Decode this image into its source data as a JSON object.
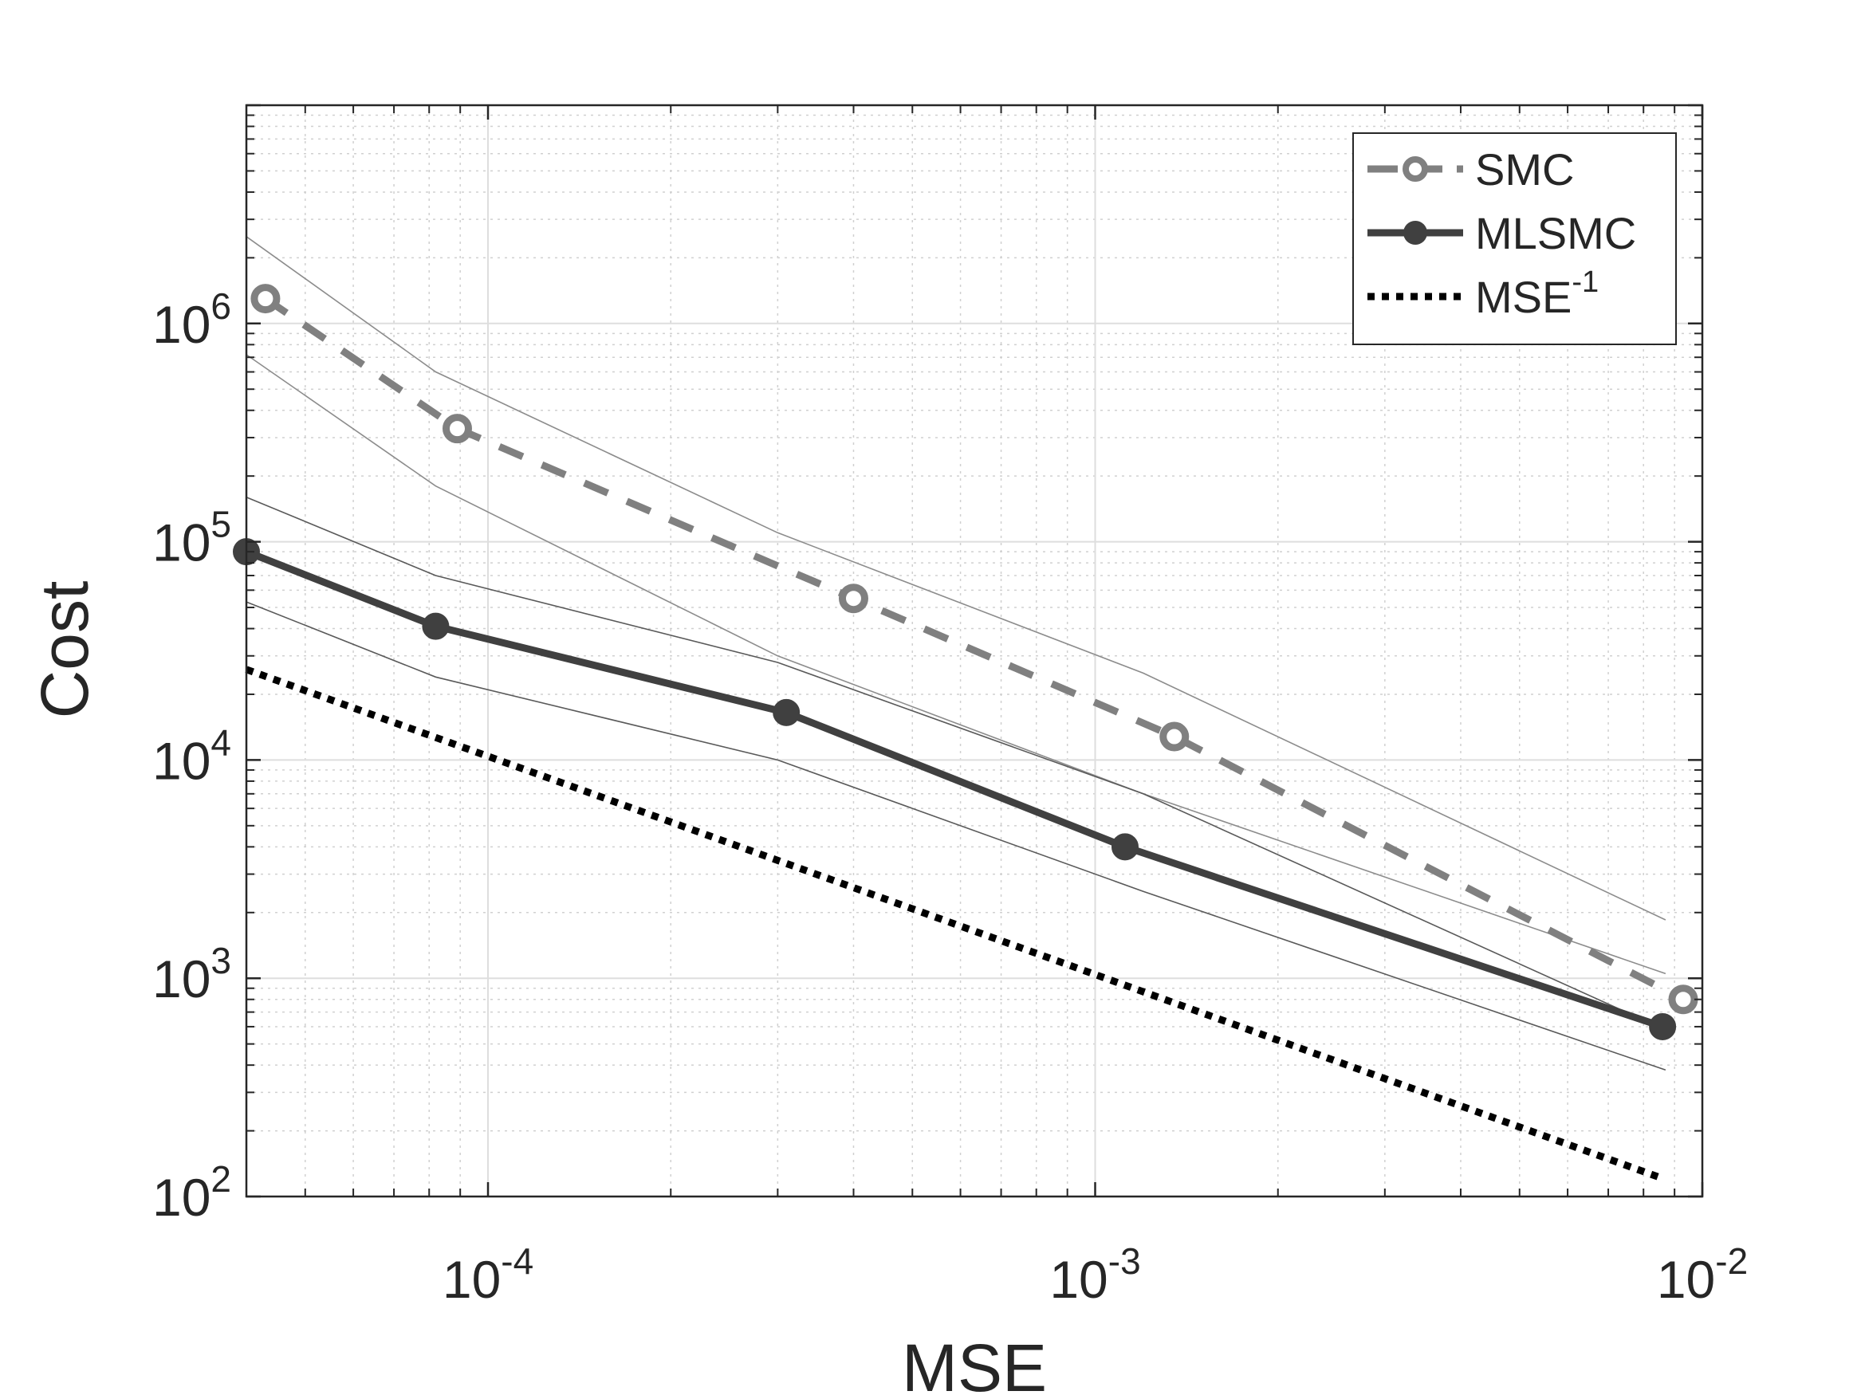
{
  "chart_data": {
    "type": "line",
    "title": "",
    "xlabel": "MSE",
    "ylabel": "Cost",
    "xscale": "log",
    "yscale": "log",
    "xlim": [
      4e-05,
      0.01
    ],
    "ylim": [
      100,
      10000000
    ],
    "grid": true,
    "minor_grid": true,
    "legend_position": "top-right",
    "x_ticks": [
      {
        "value": 0.0001,
        "base": "10",
        "exp": "-4"
      },
      {
        "value": 0.001,
        "base": "10",
        "exp": "-3"
      },
      {
        "value": 0.01,
        "base": "10",
        "exp": "-2"
      }
    ],
    "y_ticks": [
      {
        "value": 100,
        "base": "10",
        "exp": "2"
      },
      {
        "value": 1000,
        "base": "10",
        "exp": "3"
      },
      {
        "value": 10000,
        "base": "10",
        "exp": "4"
      },
      {
        "value": 100000,
        "base": "10",
        "exp": "5"
      },
      {
        "value": 1000000,
        "base": "10",
        "exp": "6"
      }
    ],
    "series": [
      {
        "name": "SMC",
        "style": "dashed",
        "marker": "open-circle",
        "color": "#808080",
        "x": [
          4.3e-05,
          8.9e-05,
          0.0004,
          0.00135,
          0.0093
        ],
        "y": [
          1300000,
          330000,
          55000,
          12800,
          800
        ]
      },
      {
        "name": "MLSMC",
        "style": "solid",
        "marker": "filled-circle",
        "color": "#404040",
        "x": [
          4e-05,
          8.2e-05,
          0.00031,
          0.00112,
          0.0086
        ],
        "y": [
          90000,
          41000,
          16500,
          4000,
          600
        ]
      },
      {
        "name": "MSE",
        "name_sup": "-1",
        "style": "dotted",
        "marker": "none",
        "color": "#000000",
        "x": [
          4e-05,
          0.0086
        ],
        "y": [
          26000,
          121
        ]
      }
    ],
    "bands": [
      {
        "of": "SMC",
        "color": "#8c8c8c",
        "x": [
          4e-05,
          8.2e-05,
          0.0003,
          0.0012,
          0.0087
        ],
        "y": [
          2500000,
          600000,
          110000,
          25000,
          1850
        ]
      },
      {
        "of": "SMC",
        "color": "#8c8c8c",
        "x": [
          4e-05,
          8.2e-05,
          0.0003,
          0.0012,
          0.0087
        ],
        "y": [
          720000,
          180000,
          30000,
          7000,
          1050
        ]
      },
      {
        "of": "MLSMC",
        "color": "#595959",
        "x": [
          4e-05,
          8.2e-05,
          0.0003,
          0.0012,
          0.0087
        ],
        "y": [
          160000,
          70000,
          28000,
          7000,
          580
        ]
      },
      {
        "of": "MLSMC",
        "color": "#595959",
        "x": [
          4e-05,
          8.2e-05,
          0.0003,
          0.0012,
          0.0087
        ],
        "y": [
          53000,
          24000,
          10000,
          2500,
          380
        ]
      }
    ]
  }
}
